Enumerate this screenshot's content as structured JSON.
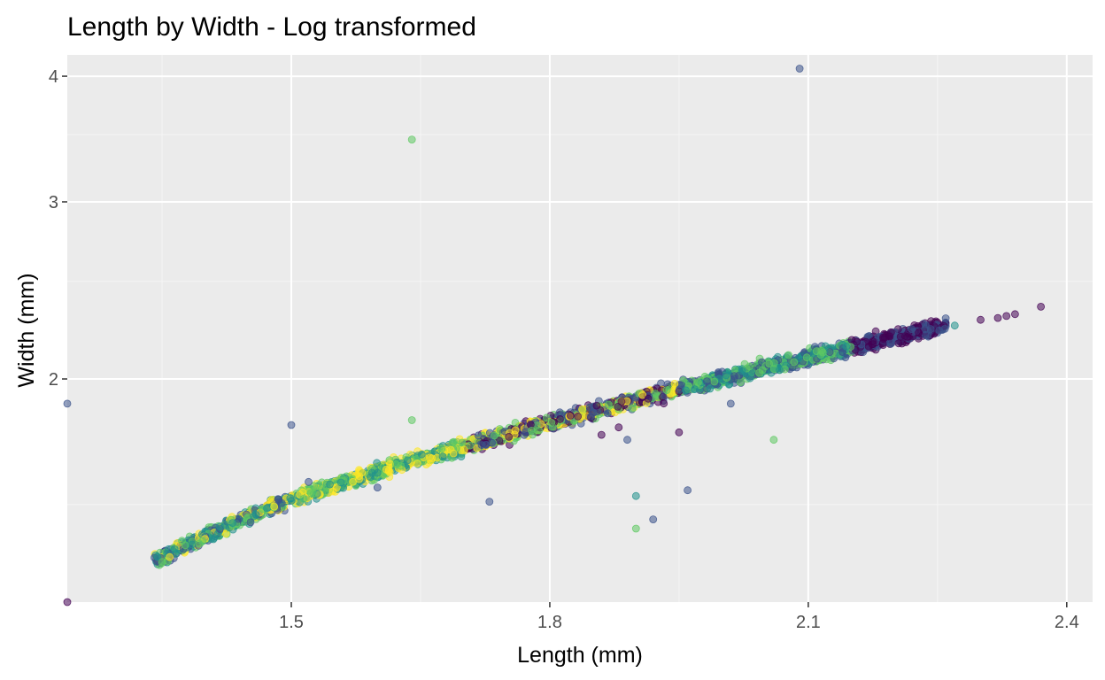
{
  "chart_data": {
    "type": "scatter",
    "title": "Length by Width - Log transformed",
    "xlabel": "Length (mm)",
    "ylabel": "Width (mm)",
    "x_ticks": [
      "1.5",
      "1.8",
      "2.1",
      "2.4"
    ],
    "y_ticks": [
      "2",
      "3",
      "4"
    ],
    "xlim": [
      1.24,
      2.43
    ],
    "ylim": [
      1.2,
      4.2
    ],
    "scale": "log",
    "grid": true,
    "legend": "none",
    "colormap": [
      "#440154",
      "#3b528b",
      "#21918c",
      "#5ec962",
      "#fde725"
    ],
    "trend": {
      "description": "dense points along a near-linear band",
      "x_range": [
        1.34,
        2.26
      ],
      "fit_points": [
        [
          1.34,
          1.32
        ],
        [
          1.5,
          1.52
        ],
        [
          1.8,
          1.81
        ],
        [
          2.1,
          2.1
        ],
        [
          2.26,
          2.26
        ]
      ]
    },
    "band_colors": [
      {
        "x_range": [
          1.34,
          1.5
        ],
        "color_order": [
          2,
          4,
          3,
          1
        ]
      },
      {
        "x_range": [
          1.5,
          1.7
        ],
        "color_order": [
          3,
          4,
          2
        ]
      },
      {
        "x_range": [
          1.7,
          1.95
        ],
        "color_order": [
          1,
          0,
          3,
          4
        ]
      },
      {
        "x_range": [
          1.95,
          2.15
        ],
        "color_order": [
          2,
          3,
          1
        ]
      },
      {
        "x_range": [
          2.15,
          2.26
        ],
        "color_order": [
          1,
          0
        ]
      }
    ],
    "outliers": [
      {
        "x": 2.09,
        "y": 4.07,
        "c": 1
      },
      {
        "x": 1.64,
        "y": 3.46,
        "c": 3
      },
      {
        "x": 1.24,
        "y": 1.89,
        "c": 1
      },
      {
        "x": 1.5,
        "y": 1.8,
        "c": 1
      },
      {
        "x": 1.64,
        "y": 1.82,
        "c": 3
      },
      {
        "x": 2.37,
        "y": 2.36,
        "c": 0
      },
      {
        "x": 2.34,
        "y": 2.32,
        "c": 0
      },
      {
        "x": 2.33,
        "y": 2.31,
        "c": 0
      },
      {
        "x": 2.32,
        "y": 2.3,
        "c": 0
      },
      {
        "x": 2.3,
        "y": 2.29,
        "c": 0
      },
      {
        "x": 2.27,
        "y": 2.26,
        "c": 2
      },
      {
        "x": 2.01,
        "y": 1.89,
        "c": 1
      },
      {
        "x": 2.06,
        "y": 1.74,
        "c": 3
      },
      {
        "x": 1.96,
        "y": 1.55,
        "c": 1
      },
      {
        "x": 1.9,
        "y": 1.53,
        "c": 2
      },
      {
        "x": 1.9,
        "y": 1.42,
        "c": 3
      },
      {
        "x": 1.92,
        "y": 1.45,
        "c": 1
      },
      {
        "x": 1.73,
        "y": 1.51,
        "c": 1
      },
      {
        "x": 1.88,
        "y": 1.79,
        "c": 0
      },
      {
        "x": 1.89,
        "y": 1.74,
        "c": 1
      },
      {
        "x": 1.95,
        "y": 1.77,
        "c": 0
      },
      {
        "x": 1.86,
        "y": 1.76,
        "c": 0
      },
      {
        "x": 1.6,
        "y": 1.56,
        "c": 1
      },
      {
        "x": 1.52,
        "y": 1.58,
        "c": 1
      },
      {
        "x": 1.24,
        "y": 1.2,
        "c": 0
      }
    ]
  }
}
